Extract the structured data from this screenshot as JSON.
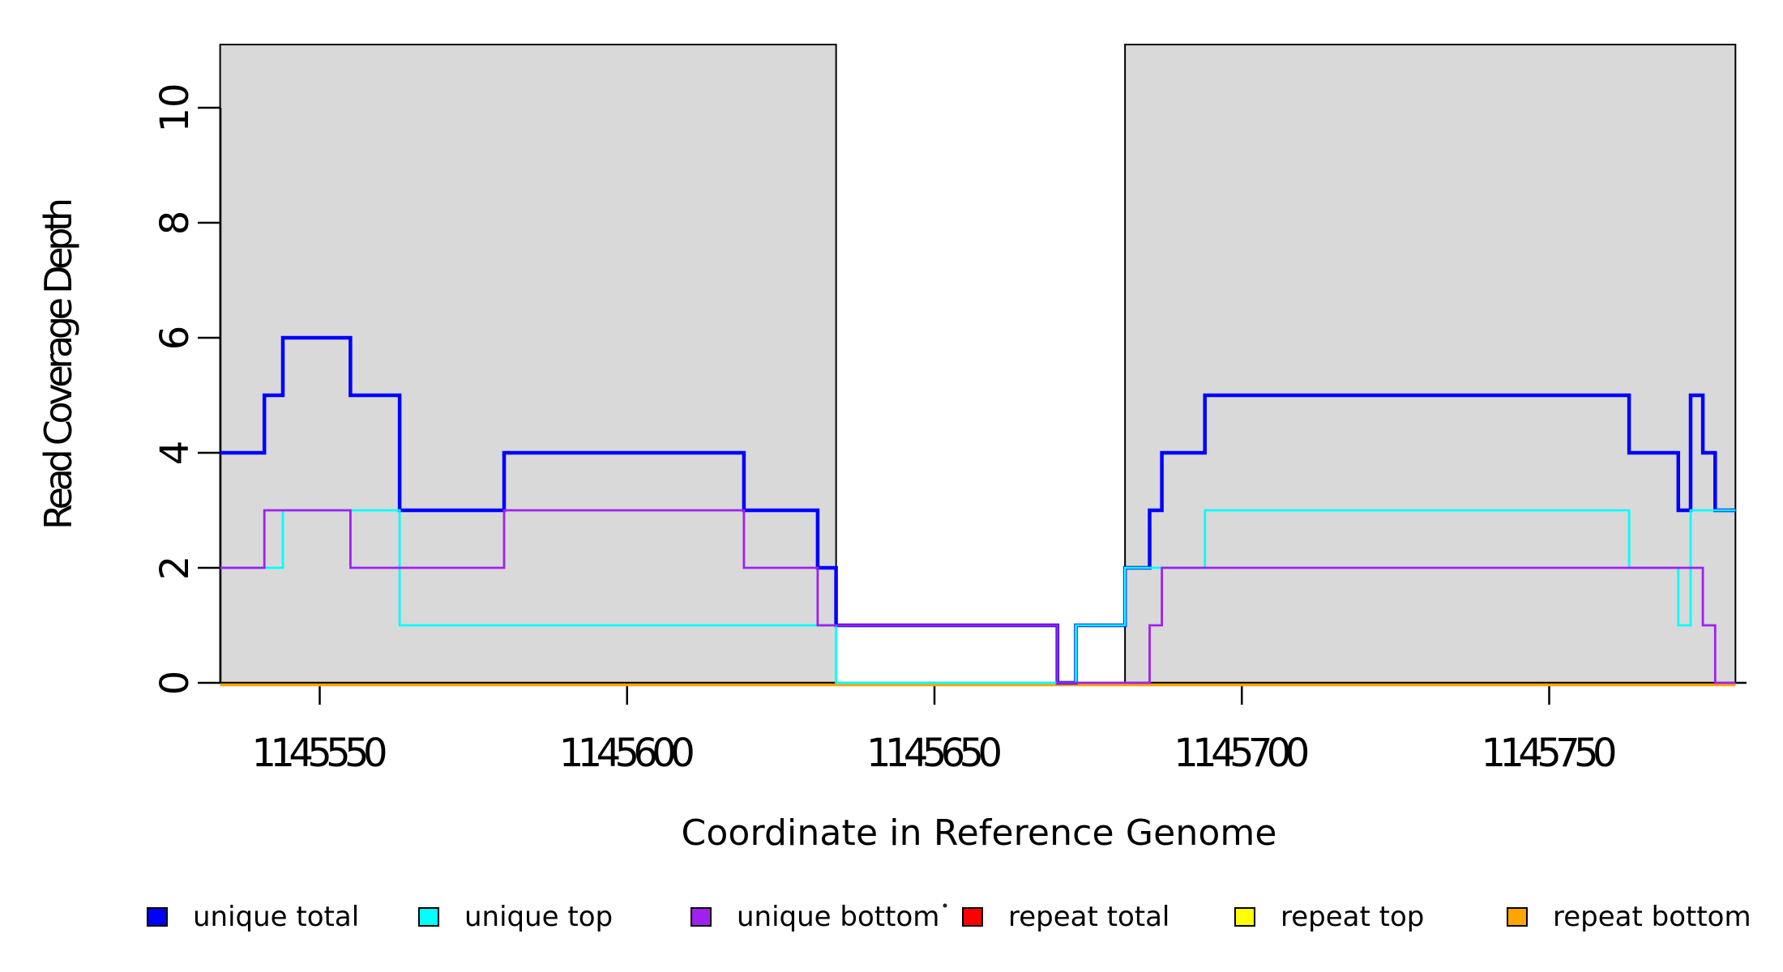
{
  "figure": {
    "background_color": "#FFFFFF",
    "band_fill_color": "#D9D9D9",
    "band_border_color": "#000000",
    "axis_color": "#000000"
  },
  "chart_data": {
    "type": "line",
    "subtype": "step-after",
    "title": "",
    "xlabel": "Coordinate in Reference Genome",
    "ylabel": "Read Coverage Depth",
    "xlim": [
      1145533.8,
      1145782
    ],
    "ylim": [
      0,
      11.1
    ],
    "x_ticks": [
      1145550,
      1145600,
      1145650,
      1145700,
      1145750
    ],
    "y_ticks": [
      0,
      2,
      4,
      6,
      8,
      10
    ],
    "grid": false,
    "legend_position": "bottom",
    "x_data_start": 1145533.8,
    "x_data_end": 1145780.3,
    "shaded_regions": [
      [
        1145533.8,
        1145634
      ],
      [
        1145681,
        1145780.3
      ]
    ],
    "series": [
      {
        "name": "repeat total",
        "color": "#FF0000",
        "width": 2.5,
        "zero_offset": true,
        "points": [
          [
            1145533.8,
            0
          ]
        ]
      },
      {
        "name": "repeat top",
        "color": "#FFFF00",
        "width": 2.5,
        "zero_offset": true,
        "points": [
          [
            1145533.8,
            0
          ]
        ]
      },
      {
        "name": "repeat bottom",
        "color": "#FFA500",
        "width": 3.5,
        "zero_offset": true,
        "points": [
          [
            1145533.8,
            0
          ]
        ]
      },
      {
        "name": "unique total",
        "color": "#0000FF",
        "width": 4.5,
        "zero_offset": false,
        "points": [
          [
            1145533.8,
            4
          ],
          [
            1145541,
            5
          ],
          [
            1145544,
            6
          ],
          [
            1145555,
            5
          ],
          [
            1145563,
            3
          ],
          [
            1145580,
            4
          ],
          [
            1145619,
            3
          ],
          [
            1145631,
            2
          ],
          [
            1145634,
            1
          ],
          [
            1145670,
            0
          ],
          [
            1145673,
            1
          ],
          [
            1145681,
            2
          ],
          [
            1145685,
            3
          ],
          [
            1145687,
            4
          ],
          [
            1145694,
            5
          ],
          [
            1145763,
            4
          ],
          [
            1145771,
            3
          ],
          [
            1145773,
            5
          ],
          [
            1145775,
            4
          ],
          [
            1145777,
            3
          ]
        ]
      },
      {
        "name": "unique top",
        "color": "#00FFFF",
        "width": 2.8,
        "zero_offset": false,
        "points": [
          [
            1145533.8,
            2
          ],
          [
            1145544,
            3
          ],
          [
            1145563,
            1
          ],
          [
            1145634,
            0
          ],
          [
            1145673,
            1
          ],
          [
            1145681,
            2
          ],
          [
            1145694,
            3
          ],
          [
            1145763,
            2
          ],
          [
            1145771,
            1
          ],
          [
            1145773,
            3
          ]
        ]
      },
      {
        "name": "unique bottom",
        "color": "#A020F0",
        "width": 2.8,
        "zero_offset": false,
        "points": [
          [
            1145533.8,
            2
          ],
          [
            1145541,
            3
          ],
          [
            1145555,
            2
          ],
          [
            1145580,
            3
          ],
          [
            1145619,
            2
          ],
          [
            1145631,
            1
          ],
          [
            1145670,
            0
          ],
          [
            1145685,
            1
          ],
          [
            1145687,
            2
          ],
          [
            1145775,
            1
          ],
          [
            1145777,
            0
          ]
        ]
      }
    ],
    "legend": [
      {
        "label": "unique total",
        "color": "#0000FF"
      },
      {
        "label": "unique top",
        "color": "#00FFFF"
      },
      {
        "label": "unique bottom",
        "color": "#A020F0"
      },
      {
        "label": "repeat total",
        "color": "#FF0000"
      },
      {
        "label": "repeat top",
        "color": "#FFFF00"
      },
      {
        "label": "repeat bottom",
        "color": "#FFA500"
      }
    ]
  }
}
